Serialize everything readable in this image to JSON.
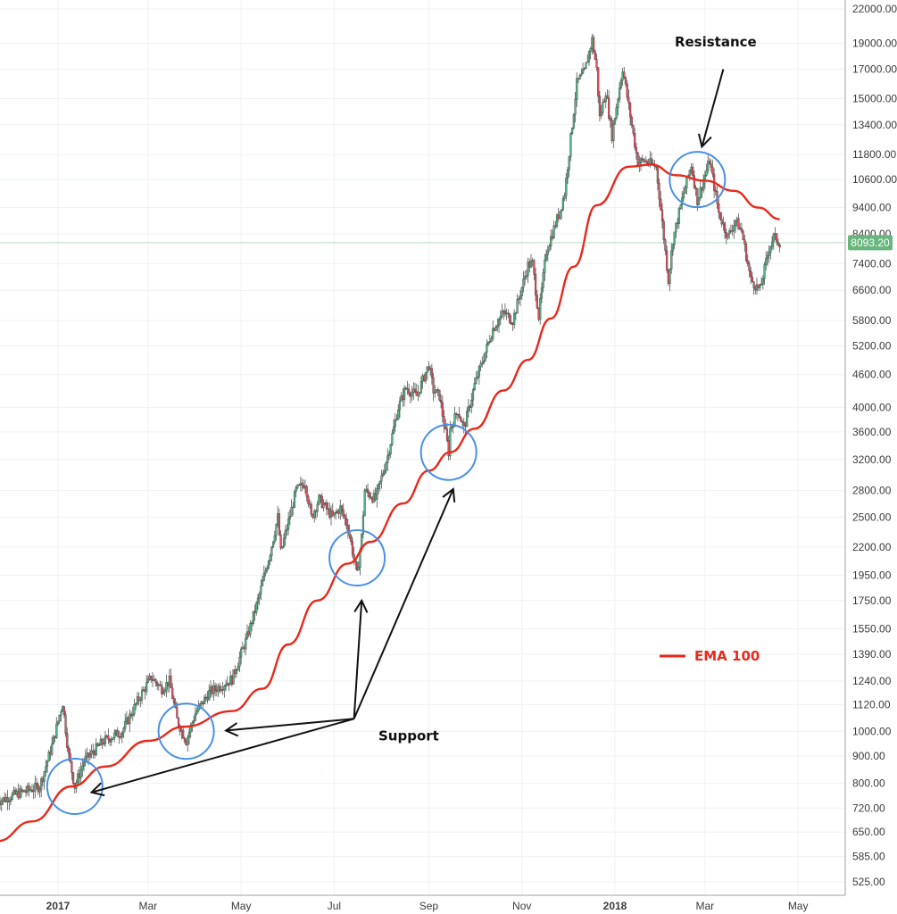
{
  "chart_data": {
    "type": "candlestick",
    "title": "",
    "xlabel": "",
    "ylabel": "",
    "y_scale": "log",
    "ylim": [
      490,
      22000
    ],
    "xlim": [
      "2016-11-22",
      "2018-05-20"
    ],
    "grid": true,
    "y_ticks": [
      "22000.00",
      "19000.00",
      "17000.00",
      "15000.00",
      "13400.00",
      "11800.00",
      "10600.00",
      "9400.00",
      "8400.00",
      "7400.00",
      "6600.00",
      "5800.00",
      "5200.00",
      "4600.00",
      "4000.00",
      "3600.00",
      "3200.00",
      "2800.00",
      "2500.00",
      "2200.00",
      "1950.00",
      "1750.00",
      "1550.00",
      "1390.00",
      "1240.00",
      "1120.00",
      "1000.00",
      "900.00",
      "800.00",
      "720.00",
      "650.00",
      "585.00",
      "525.00"
    ],
    "x_ticks": [
      {
        "label": "2017",
        "date": "2017-01-01",
        "bold": true
      },
      {
        "label": "Mar",
        "date": "2017-03-01",
        "bold": false
      },
      {
        "label": "May",
        "date": "2017-05-01",
        "bold": false
      },
      {
        "label": "Jul",
        "date": "2017-07-01",
        "bold": false
      },
      {
        "label": "Sep",
        "date": "2017-09-01",
        "bold": false
      },
      {
        "label": "Nov",
        "date": "2017-11-01",
        "bold": false
      },
      {
        "label": "2018",
        "date": "2018-01-01",
        "bold": true
      },
      {
        "label": "Mar",
        "date": "2018-03-01",
        "bold": false
      },
      {
        "label": "May",
        "date": "2018-05-01",
        "bold": false
      }
    ],
    "price_anchors": [
      [
        "2016-11-22",
        740
      ],
      [
        "2016-12-05",
        765
      ],
      [
        "2016-12-20",
        790
      ],
      [
        "2016-12-28",
        940
      ],
      [
        "2017-01-04",
        1130
      ],
      [
        "2017-01-08",
        900
      ],
      [
        "2017-01-12",
        790
      ],
      [
        "2017-01-18",
        880
      ],
      [
        "2017-01-31",
        960
      ],
      [
        "2017-02-12",
        1000
      ],
      [
        "2017-02-23",
        1150
      ],
      [
        "2017-03-03",
        1260
      ],
      [
        "2017-03-10",
        1200
      ],
      [
        "2017-03-15",
        1240
      ],
      [
        "2017-03-20",
        1050
      ],
      [
        "2017-03-26",
        960
      ],
      [
        "2017-04-01",
        1080
      ],
      [
        "2017-04-10",
        1180
      ],
      [
        "2017-04-25",
        1250
      ],
      [
        "2017-05-05",
        1500
      ],
      [
        "2017-05-12",
        1750
      ],
      [
        "2017-05-20",
        2150
      ],
      [
        "2017-05-25",
        2500
      ],
      [
        "2017-05-27",
        2150
      ],
      [
        "2017-06-06",
        2800
      ],
      [
        "2017-06-12",
        2900
      ],
      [
        "2017-06-16",
        2500
      ],
      [
        "2017-06-21",
        2700
      ],
      [
        "2017-06-30",
        2500
      ],
      [
        "2017-07-05",
        2600
      ],
      [
        "2017-07-10",
        2400
      ],
      [
        "2017-07-16",
        1950
      ],
      [
        "2017-07-19",
        2300
      ],
      [
        "2017-07-21",
        2800
      ],
      [
        "2017-07-28",
        2700
      ],
      [
        "2017-08-05",
        3250
      ],
      [
        "2017-08-12",
        4000
      ],
      [
        "2017-08-17",
        4350
      ],
      [
        "2017-08-24",
        4200
      ],
      [
        "2017-09-01",
        4800
      ],
      [
        "2017-09-04",
        4300
      ],
      [
        "2017-09-08",
        4200
      ],
      [
        "2017-09-14",
        3300
      ],
      [
        "2017-09-15",
        3650
      ],
      [
        "2017-09-20",
        3950
      ],
      [
        "2017-09-24",
        3650
      ],
      [
        "2017-10-01",
        4400
      ],
      [
        "2017-10-13",
        5600
      ],
      [
        "2017-10-20",
        6000
      ],
      [
        "2017-10-26",
        5800
      ],
      [
        "2017-11-05",
        7350
      ],
      [
        "2017-11-08",
        7400
      ],
      [
        "2017-11-12",
        5900
      ],
      [
        "2017-11-17",
        7800
      ],
      [
        "2017-11-26",
        9300
      ],
      [
        "2017-11-29",
        10000
      ],
      [
        "2017-12-07",
        16000
      ],
      [
        "2017-12-12",
        16800
      ],
      [
        "2017-12-17",
        19300
      ],
      [
        "2017-12-20",
        17000
      ],
      [
        "2017-12-22",
        13800
      ],
      [
        "2017-12-26",
        15500
      ],
      [
        "2017-12-30",
        12800
      ],
      [
        "2018-01-06",
        17100
      ],
      [
        "2018-01-10",
        14500
      ],
      [
        "2018-01-16",
        11400
      ],
      [
        "2018-01-20",
        11500
      ],
      [
        "2018-01-28",
        11200
      ],
      [
        "2018-02-05",
        6900
      ],
      [
        "2018-02-08",
        8200
      ],
      [
        "2018-02-15",
        10000
      ],
      [
        "2018-02-20",
        11300
      ],
      [
        "2018-02-24",
        9700
      ],
      [
        "2018-03-04",
        11500
      ],
      [
        "2018-03-10",
        9200
      ],
      [
        "2018-03-16",
        8300
      ],
      [
        "2018-03-21",
        8900
      ],
      [
        "2018-03-25",
        8500
      ],
      [
        "2018-03-31",
        6900
      ],
      [
        "2018-04-06",
        6600
      ],
      [
        "2018-04-12",
        7900
      ],
      [
        "2018-04-15",
        8300
      ],
      [
        "2018-04-19",
        8093.2
      ]
    ],
    "ema": {
      "name": "EMA 100",
      "color": "#e8291c",
      "points": [
        [
          "2016-11-22",
          625
        ],
        [
          "2016-12-15",
          680
        ],
        [
          "2017-01-10",
          790
        ],
        [
          "2017-02-01",
          860
        ],
        [
          "2017-03-01",
          960
        ],
        [
          "2017-03-25",
          1020
        ],
        [
          "2017-04-25",
          1090
        ],
        [
          "2017-05-15",
          1200
        ],
        [
          "2017-06-01",
          1450
        ],
        [
          "2017-06-20",
          1750
        ],
        [
          "2017-07-10",
          2050
        ],
        [
          "2017-07-25",
          2250
        ],
        [
          "2017-08-15",
          2650
        ],
        [
          "2017-09-01",
          3050
        ],
        [
          "2017-09-15",
          3300
        ],
        [
          "2017-10-01",
          3650
        ],
        [
          "2017-10-20",
          4300
        ],
        [
          "2017-11-05",
          4900
        ],
        [
          "2017-11-20",
          5850
        ],
        [
          "2017-12-05",
          7300
        ],
        [
          "2017-12-20",
          9500
        ],
        [
          "2018-01-10",
          11200
        ],
        [
          "2018-01-25",
          11300
        ],
        [
          "2018-02-10",
          10800
        ],
        [
          "2018-03-01",
          10550
        ],
        [
          "2018-03-20",
          10100
        ],
        [
          "2018-04-05",
          9400
        ],
        [
          "2018-04-19",
          8950
        ]
      ]
    },
    "last_price": {
      "label": "8093.20",
      "value": 8093.2
    },
    "colors": {
      "up": "#53b987",
      "down": "#eb4d5c",
      "circle": "#4a90e2",
      "grid": "#eef1f4",
      "price_badge": "#68b57e"
    },
    "circles": [
      {
        "date": "2017-01-12",
        "value": 790
      },
      {
        "date": "2017-03-26",
        "value": 1000
      },
      {
        "date": "2017-07-16",
        "value": 2100
      },
      {
        "date": "2017-09-14",
        "value": 3300
      },
      {
        "date": "2018-02-24",
        "value": 10600
      }
    ],
    "annotations": {
      "support": {
        "text": "Support",
        "date": "2017-07-30",
        "value": 1000
      },
      "resistance": {
        "text": "Resistance",
        "date": "2018-03-08",
        "value": 19100
      }
    },
    "arrows": [
      {
        "from": [
          "2017-07-14",
          1055
        ],
        "to": [
          "2017-01-23",
          770
        ],
        "label": "support"
      },
      {
        "from": [
          "2017-07-14",
          1055
        ],
        "to": [
          "2017-04-21",
          1003
        ],
        "label": "support"
      },
      {
        "from": [
          "2017-07-14",
          1055
        ],
        "to": [
          "2017-07-19",
          1750
        ],
        "label": "support"
      },
      {
        "from": [
          "2017-07-14",
          1055
        ],
        "to": [
          "2017-09-17",
          2820
        ],
        "label": "support"
      },
      {
        "from": [
          "2018-03-13",
          17000
        ],
        "to": [
          "2018-02-27",
          12200
        ],
        "label": "resistance"
      }
    ]
  },
  "legend": {
    "label": "EMA 100",
    "color": "#e8291c"
  }
}
